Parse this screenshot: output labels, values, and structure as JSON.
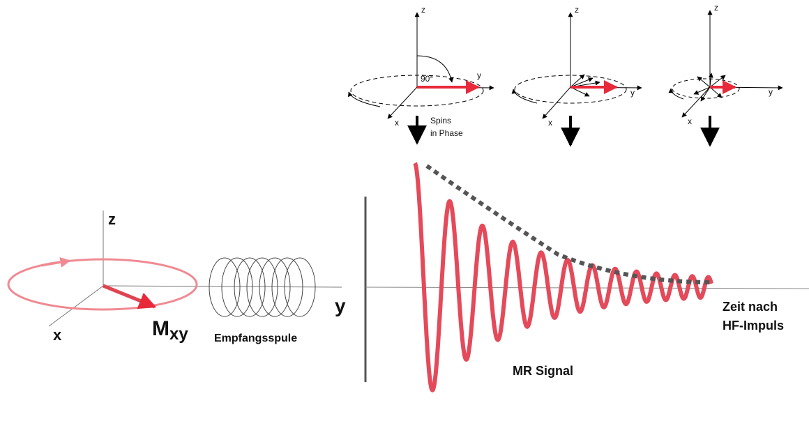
{
  "panels": [
    {
      "z": "z",
      "y": "y",
      "x": "x",
      "angle": "90°",
      "note": [
        "Spins",
        "in Phase"
      ]
    },
    {
      "z": "z",
      "y": "y",
      "x": "x"
    },
    {
      "z": "z",
      "y": "y",
      "x": "x"
    }
  ],
  "main": {
    "z": "z",
    "x": "x",
    "y": "y",
    "magnetization": {
      "symbol": "M",
      "subscript": "xy"
    },
    "coil_label": "Empfangsspule",
    "signal_label": "MR Signal",
    "time_label": [
      "Zeit nach",
      "HF-Impuls"
    ]
  }
}
